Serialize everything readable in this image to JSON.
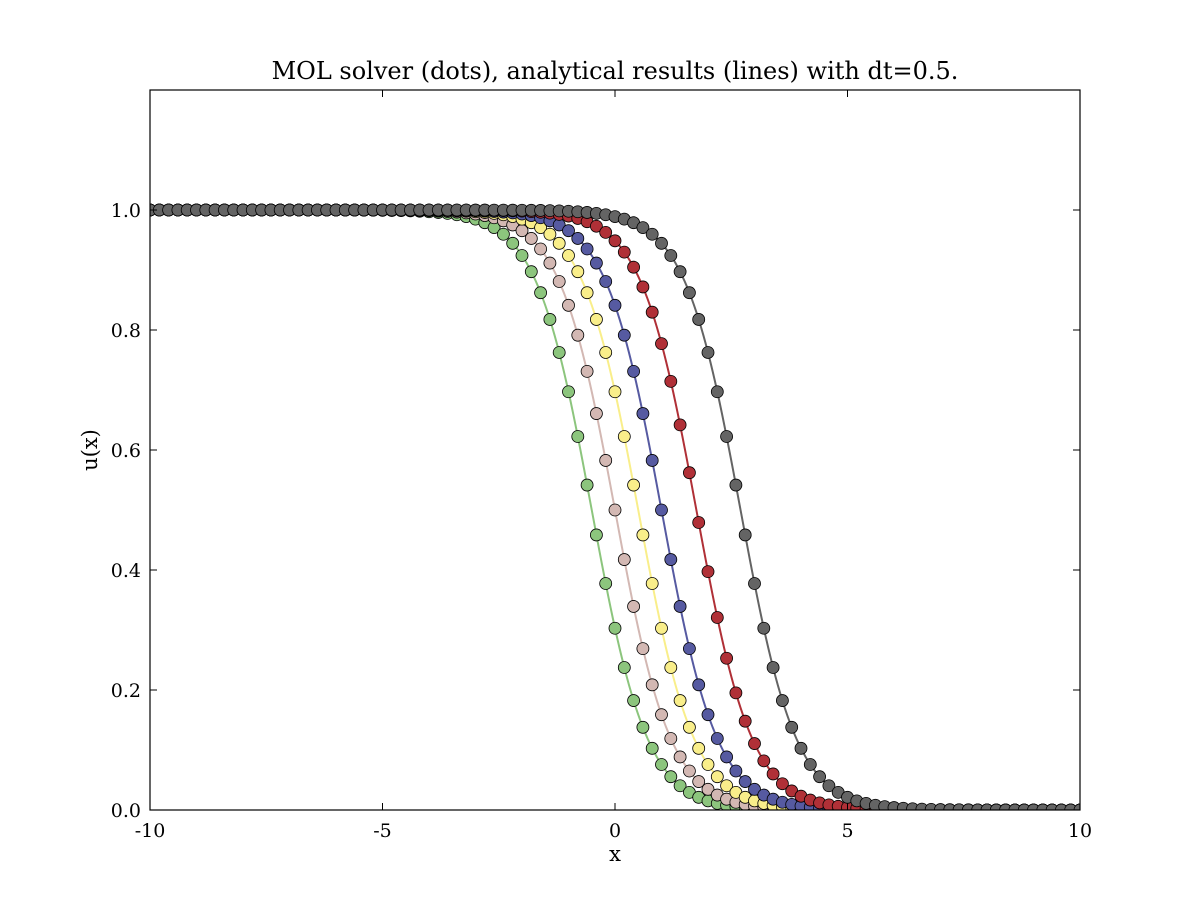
{
  "chart_data": {
    "type": "line",
    "title": "MOL solver (dots), analytical results (lines) with dt=0.5.",
    "xlabel": "x",
    "ylabel": "u(x)",
    "xlim": [
      -10,
      10
    ],
    "ylim": [
      0,
      1.2
    ],
    "x_ticks": [
      "-10",
      "-5",
      "0",
      "5",
      "10"
    ],
    "y_ticks": [
      "0.0",
      "0.2",
      "0.4",
      "0.6",
      "0.8",
      "1.0"
    ],
    "x_tick_values": [
      -10,
      -5,
      0,
      5,
      10
    ],
    "y_tick_values": [
      0,
      0.2,
      0.4,
      0.6,
      0.8,
      1.0
    ],
    "grid": false,
    "legend": "none",
    "x_points": {
      "start": -10,
      "stop": 10,
      "count": 101
    },
    "profile": "u(x) = 0.5 * (1 - tanh((x - center) / width))",
    "series": [
      {
        "center": -0.5,
        "width": 1.2,
        "color": "#8cc57d"
      },
      {
        "center": 0.0,
        "width": 1.2,
        "color": "#d3b8b3"
      },
      {
        "center": 0.5,
        "width": 1.2,
        "color": "#f9ee8a"
      },
      {
        "center": 1.0,
        "width": 1.2,
        "color": "#565aa1"
      },
      {
        "center": 1.75,
        "width": 1.2,
        "color": "#b03037"
      },
      {
        "center": 2.7,
        "width": 1.2,
        "color": "#646464"
      }
    ]
  }
}
